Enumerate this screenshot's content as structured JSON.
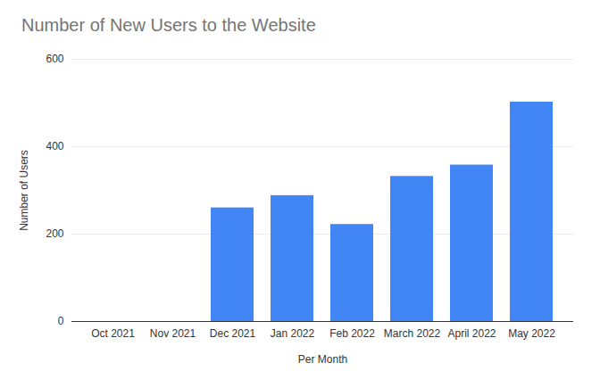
{
  "chart_data": {
    "type": "bar",
    "title": "Number of New Users to the Website",
    "x_label": "Per Month",
    "y_label": "Number of Users",
    "categories": [
      "Oct 2021",
      "Nov 2021",
      "Dec 2021",
      "Jan 2022",
      "Feb 2022",
      "March 2022",
      "April 2022",
      "May 2022"
    ],
    "values": [
      0,
      0,
      260,
      288,
      222,
      332,
      358,
      502
    ],
    "color": "#4285f4",
    "ylim": [
      0,
      600
    ],
    "yticks": [
      0,
      200,
      400,
      600
    ],
    "grid": true
  }
}
